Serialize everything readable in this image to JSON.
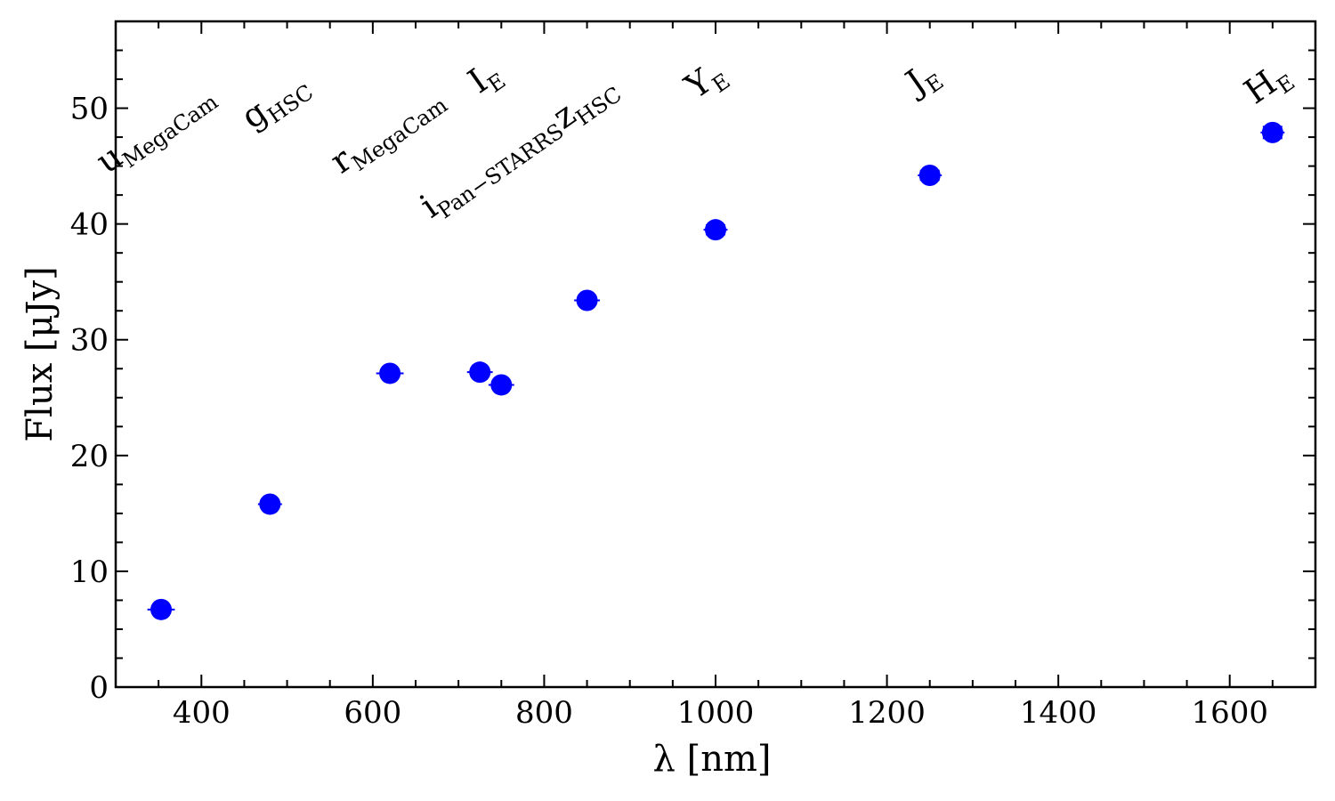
{
  "chart_data": {
    "type": "scatter",
    "xlabel": "λ [nm]",
    "ylabel": "Flux [μJy]",
    "xlim": [
      300,
      1700
    ],
    "ylim": [
      0,
      57.5
    ],
    "xticks": [
      400,
      600,
      800,
      1000,
      1200,
      1400,
      1600
    ],
    "yticks": [
      0,
      10,
      20,
      30,
      40,
      50
    ],
    "grid": false,
    "marker_color": "#0000ff",
    "points": [
      {
        "band": "u",
        "sub": "MegaCam",
        "x": 353,
        "y": 6.7,
        "xerr": 16,
        "yerr": 0.3
      },
      {
        "band": "g",
        "sub": "HSC",
        "x": 480,
        "y": 15.8,
        "xerr": 14,
        "yerr": 0.3
      },
      {
        "band": "r",
        "sub": "MegaCam",
        "x": 620,
        "y": 27.1,
        "xerr": 16,
        "yerr": 0.3
      },
      {
        "band": "I",
        "sub": "E",
        "x": 725,
        "y": 27.2,
        "xerr": 15,
        "yerr": 0.3
      },
      {
        "band": "i",
        "sub": "Pan−STARRS",
        "x": 750,
        "y": 26.1,
        "xerr": 15,
        "yerr": 0.3
      },
      {
        "band": "z",
        "sub": "HSC",
        "x": 850,
        "y": 33.4,
        "xerr": 15,
        "yerr": 0.3
      },
      {
        "band": "Y",
        "sub": "E",
        "x": 1000,
        "y": 39.5,
        "xerr": 14,
        "yerr": 0.4
      },
      {
        "band": "J",
        "sub": "E",
        "x": 1250,
        "y": 44.2,
        "xerr": 14,
        "yerr": 0.4
      },
      {
        "band": "H",
        "sub": "E",
        "x": 1650,
        "y": 47.9,
        "xerr": 14,
        "yerr": 0.5
      }
    ]
  }
}
